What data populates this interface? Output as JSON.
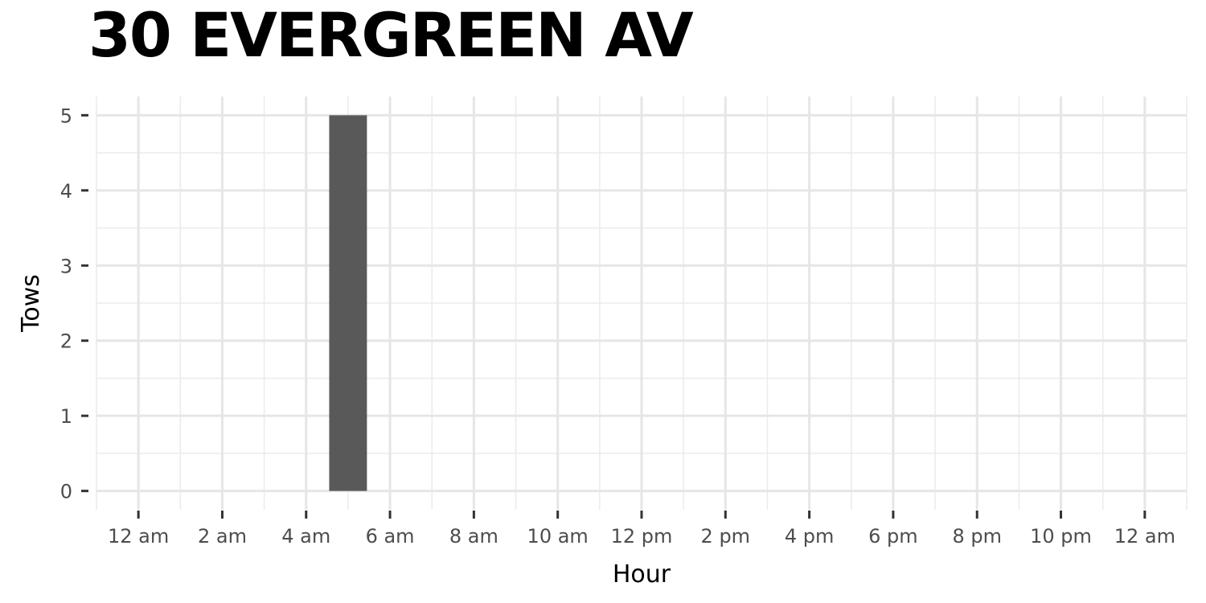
{
  "chart_data": {
    "type": "bar",
    "title": "30 EVERGREEN AV",
    "xlabel": "Hour",
    "ylabel": "Tows",
    "x_tick_labels": [
      "12 am",
      "2 am",
      "4 am",
      "6 am",
      "8 am",
      "10 am",
      "12 pm",
      "2 pm",
      "4 pm",
      "6 pm",
      "8 pm",
      "10 pm",
      "12 am"
    ],
    "x_tick_hours": [
      0,
      2,
      4,
      6,
      8,
      10,
      12,
      14,
      16,
      18,
      20,
      22,
      24
    ],
    "xlim": [
      -1,
      25
    ],
    "y_ticks": [
      0,
      1,
      2,
      3,
      4,
      5
    ],
    "ylim": [
      -0.25,
      5.25
    ],
    "series": [
      {
        "hours": [
          5
        ],
        "values": [
          5
        ]
      }
    ],
    "bar_color": "#595959",
    "grid": true,
    "legend": "none"
  }
}
